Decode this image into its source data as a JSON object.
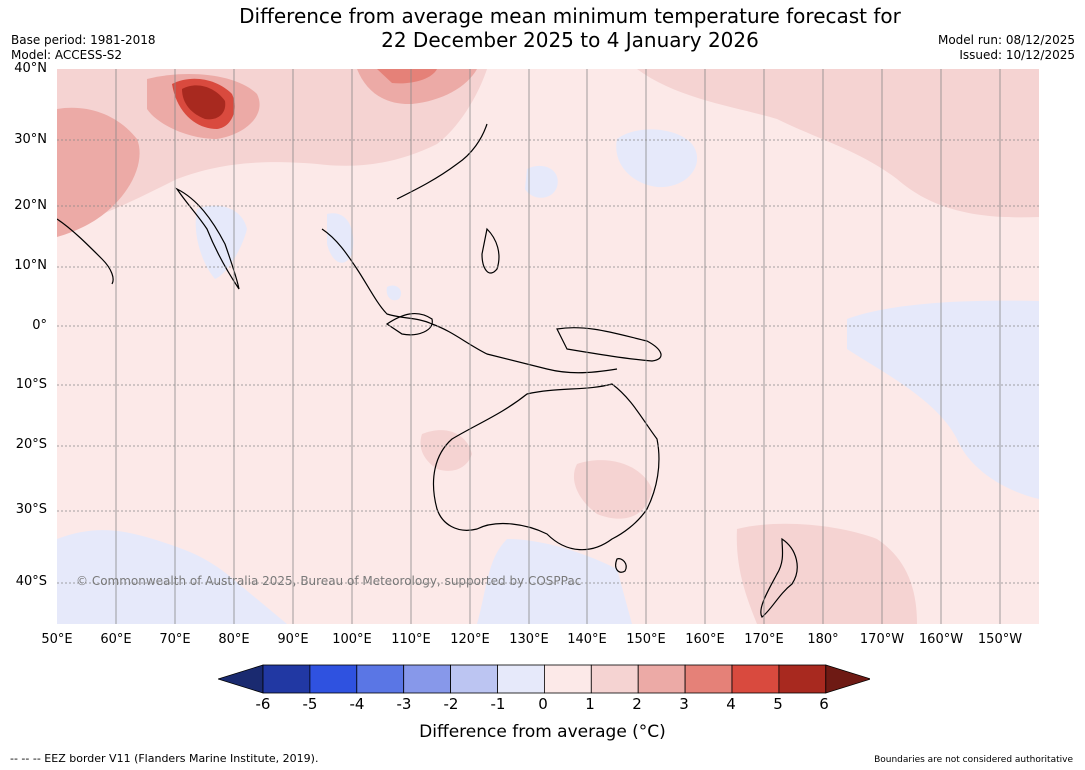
{
  "title": {
    "line1": "Difference from average mean minimum temperature forecast for",
    "line2": "22 December 2025 to 4 January 2026"
  },
  "meta_left": {
    "base_period": "Base period: 1981-2018",
    "model": "Model: ACCESS-S2"
  },
  "meta_right": {
    "model_run": "Model run: 08/12/2025",
    "issued": "Issued: 10/12/2025"
  },
  "map": {
    "lat_labels": [
      "40°N",
      "30°N",
      "20°N",
      "10°N",
      "0°",
      "10°S",
      "20°S",
      "30°S",
      "40°S"
    ],
    "lon_labels": [
      "50°E",
      "60°E",
      "70°E",
      "80°E",
      "90°E",
      "100°E",
      "110°E",
      "120°E",
      "130°E",
      "140°E",
      "150°E",
      "160°E",
      "170°E",
      "180°",
      "170°W",
      "160°W",
      "150°W"
    ],
    "copyright": "© Commonwealth of Australia 2025, Bureau of Meteorology, supported by COSPPac"
  },
  "colorbar": {
    "ticks": [
      "-6",
      "-5",
      "-4",
      "-3",
      "-2",
      "-1",
      "0",
      "1",
      "2",
      "3",
      "4",
      "5",
      "6"
    ],
    "colors": [
      "#2138a3",
      "#2f52e0",
      "#5a76e5",
      "#8798ea",
      "#bcc5f2",
      "#e6e9fa",
      "#fce9e8",
      "#f5d3d2",
      "#ecaaa6",
      "#e58178",
      "#d94a3e",
      "#a8291f"
    ],
    "under_color": "#1a2a70",
    "over_color": "#6e1a14",
    "label": "Difference from average (°C)"
  },
  "footer": {
    "left": "--  --  -- EEZ border V11 (Flanders Marine Institute, 2019).",
    "right": "Boundaries are not considered authoritative"
  }
}
